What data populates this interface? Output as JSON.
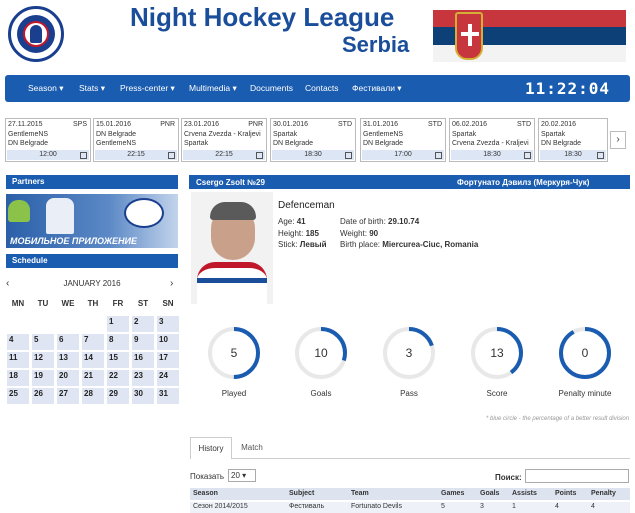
{
  "header": {
    "title": "Night Hockey League",
    "subtitle": "Serbia"
  },
  "nav": {
    "items": [
      "Season ▾",
      "Stats ▾",
      "Press-center ▾",
      "Multimedia ▾",
      "Documents",
      "Contacts",
      "Фестивали ▾"
    ],
    "clock": "11:22:04"
  },
  "games": [
    {
      "date": "27.11.2015",
      "type": "SPS",
      "team1": "GentlemeNS",
      "team2": "DN Belgrade",
      "time": "12:00"
    },
    {
      "date": "15.01.2016",
      "type": "PNR",
      "team1": "DN Belgrade",
      "team2": "GentlemeNS",
      "time": "22:15"
    },
    {
      "date": "23.01.2016",
      "type": "PNR",
      "team1": "Crvena Zvezda - Kraljevi",
      "team2": "Spartak",
      "time": "22:15"
    },
    {
      "date": "30.01.2016",
      "type": "STD",
      "team1": "Spartak",
      "team2": "DN Belgrade",
      "time": "18:30"
    },
    {
      "date": "31.01.2016",
      "type": "STD",
      "team1": "GentlemeNS",
      "team2": "DN Belgrade",
      "time": "17:00"
    },
    {
      "date": "06.02.2016",
      "type": "STD",
      "team1": "Spartak",
      "team2": "Crvena Zvezda - Kraljevi",
      "time": "18:30"
    },
    {
      "date": "20.02.2016",
      "type": "STD",
      "team1": "Spartak",
      "team2": "DN Belgrade",
      "time": "18:30"
    }
  ],
  "sidebar": {
    "partners_title": "Partners",
    "banner_text": "МОБИЛЬНОЕ ПРИЛОЖЕНИЕ",
    "schedule_title": "Schedule",
    "calendar": {
      "month": "JANUARY 2016",
      "prev": "‹",
      "next": "›",
      "dow": [
        "MN",
        "TU",
        "WE",
        "TH",
        "FR",
        "ST",
        "SN"
      ]
    }
  },
  "player": {
    "name": "Csergo Zsolt №29",
    "team": "Фортунато Дэвилз (Меркуря-Чук)",
    "role": "Defenceman",
    "age_label": "Age:",
    "age": "41",
    "height_label": "Height:",
    "height": "185",
    "stick_label": "Stick:",
    "stick": "Левый",
    "dob_label": "Date of birth:",
    "dob": "29.10.74",
    "weight_label": "Weight:",
    "weight": "90",
    "birthplace_label": "Birth place:",
    "birthplace": "Miercurea-Ciuc, Romania"
  },
  "stats": [
    {
      "label": "Played",
      "value": "5",
      "fraction": 0.5
    },
    {
      "label": "Goals",
      "value": "10",
      "fraction": 0.3
    },
    {
      "label": "Pass",
      "value": "3",
      "fraction": 0.2
    },
    {
      "label": "Score",
      "value": "13",
      "fraction": 0.4
    },
    {
      "label": "Penalty minute",
      "value": "0",
      "fraction": 0.92
    }
  ],
  "stats_note": "* blue circle - the percentage of a better result division",
  "tabs": [
    "History",
    "Match"
  ],
  "table": {
    "show_label": "Показать",
    "show_value": "20",
    "search_label": "Поиск:",
    "headers": [
      "Season",
      "Subject",
      "Team",
      "Games",
      "Goals",
      "Assists",
      "Points",
      "Penalty"
    ],
    "row": [
      "Сезон 2014/2015",
      "Фестиваль",
      "Fortunato Devils",
      "5",
      "3",
      "1",
      "4",
      "4"
    ]
  },
  "colors": {
    "brand": "#1a5cb0",
    "title": "#1a4d9a"
  }
}
